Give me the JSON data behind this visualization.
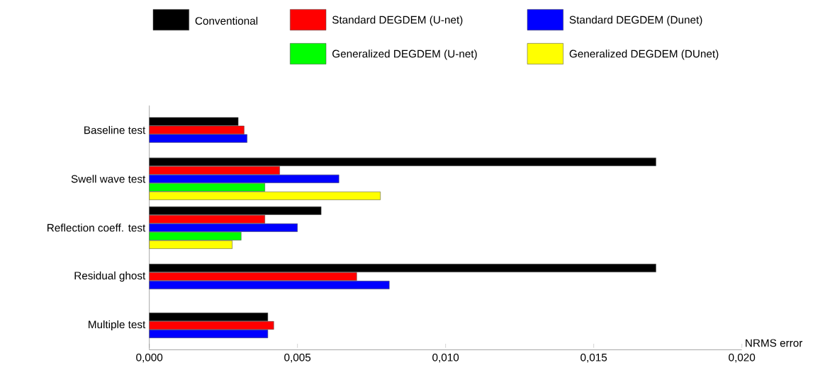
{
  "chart_data": {
    "type": "bar",
    "orientation": "horizontal",
    "xlabel": "NRMS error",
    "categories": [
      "Baseline test",
      "Swell wave test",
      "Reflection coeff. test",
      "Residual ghost",
      "Multiple test"
    ],
    "series": [
      {
        "name": "Conventional",
        "color": "#000000",
        "values": [
          0.003,
          0.0171,
          0.0058,
          0.0171,
          0.004
        ]
      },
      {
        "name": "Standard DEGDEM (U-net)",
        "color": "#ff0000",
        "values": [
          0.0032,
          0.0044,
          0.0039,
          0.007,
          0.0042
        ]
      },
      {
        "name": "Standard DEGDEM (Dunet)",
        "color": "#0000ff",
        "values": [
          0.0033,
          0.0064,
          0.005,
          0.0081,
          0.004
        ]
      },
      {
        "name": "Generalized DEGDEM (U-net)",
        "color": "#00ff00",
        "values": [
          null,
          0.0039,
          0.0031,
          null,
          null
        ]
      },
      {
        "name": "Generalized DEGDEM (DUnet)",
        "color": "#ffff00",
        "values": [
          null,
          0.0078,
          0.0028,
          null,
          null
        ]
      }
    ],
    "xlim": [
      0,
      0.02
    ],
    "xticks": [
      {
        "value": 0,
        "label": "0,000"
      },
      {
        "value": 0.005,
        "label": "0,005"
      },
      {
        "value": 0.01,
        "label": "0,010"
      },
      {
        "value": 0.015,
        "label": "0,015"
      },
      {
        "value": 0.02,
        "label": "0,020"
      }
    ],
    "grid": false,
    "legend": "top"
  }
}
